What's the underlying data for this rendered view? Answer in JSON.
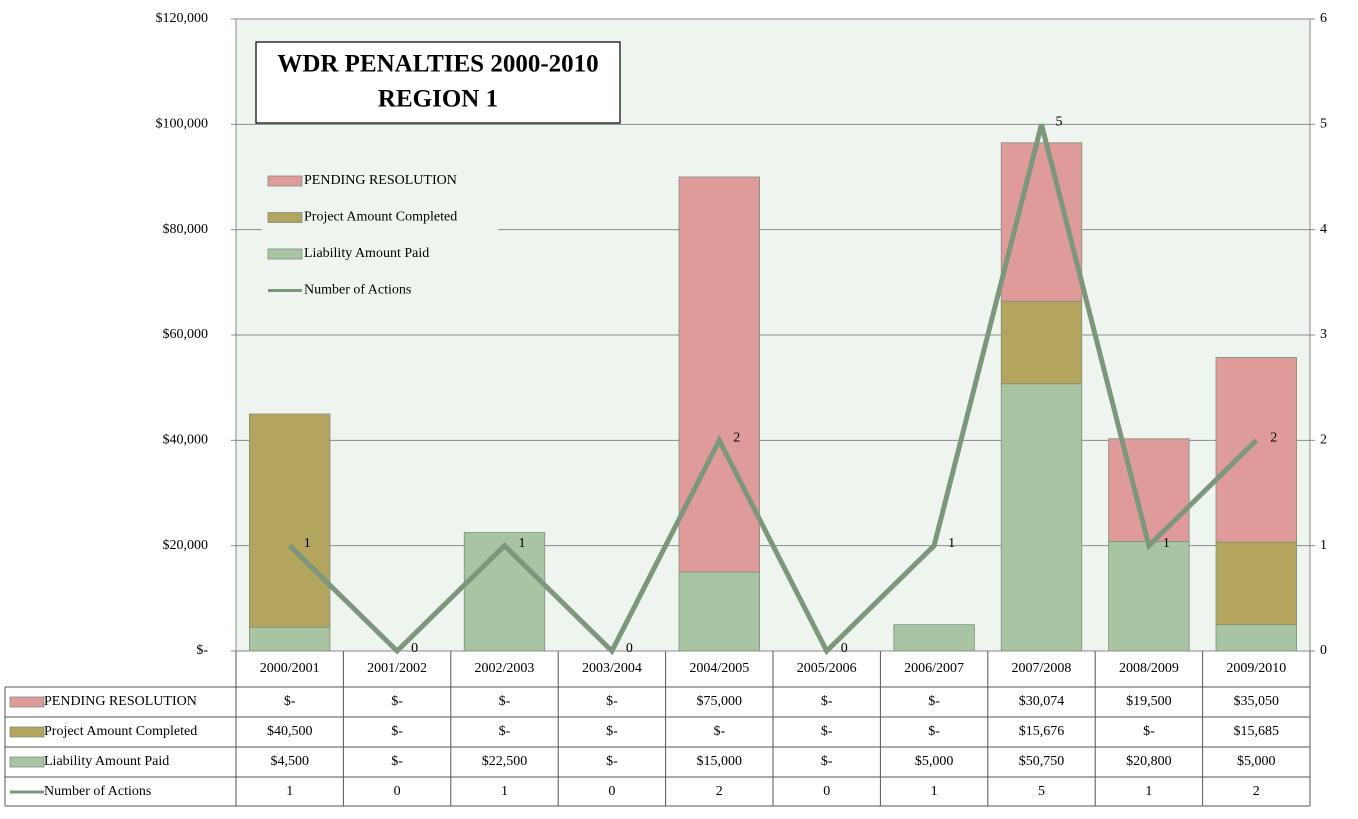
{
  "chart_data": {
    "type": "bar",
    "stacked": true,
    "title": "WDR PENALTIES 2000-2010",
    "subtitle": "REGION 1",
    "categories": [
      "2000/2001",
      "2001/2002",
      "2002/2003",
      "2003/2004",
      "2004/2005",
      "2005/2006",
      "2006/2007",
      "2007/2008",
      "2008/2009",
      "2009/2010"
    ],
    "series": [
      {
        "name": "PENDING RESOLUTION",
        "type": "bar",
        "color": "#df9a9a",
        "values": [
          0,
          0,
          0,
          0,
          75000,
          0,
          0,
          30074,
          19500,
          35050
        ],
        "value_labels": [
          "$-",
          "$-",
          "$-",
          "$-",
          "$75,000",
          "$-",
          "$-",
          "$30,074",
          "$19,500",
          "$35,050"
        ]
      },
      {
        "name": "Project Amount Completed",
        "type": "bar",
        "color": "#b3a55d",
        "values": [
          40500,
          0,
          0,
          0,
          0,
          0,
          0,
          15676,
          0,
          15685
        ],
        "value_labels": [
          "$40,500",
          "$-",
          "$-",
          "$-",
          "$-",
          "$-",
          "$-",
          "$15,676",
          "$-",
          "$15,685"
        ]
      },
      {
        "name": "Liability Amount Paid",
        "type": "bar",
        "color": "#a8c4a2",
        "values": [
          4500,
          0,
          22500,
          0,
          15000,
          0,
          5000,
          50750,
          20800,
          5000
        ],
        "value_labels": [
          "$4,500",
          "$-",
          "$22,500",
          "$-",
          "$15,000",
          "$-",
          "$5,000",
          "$50,750",
          "$20,800",
          "$5,000"
        ]
      },
      {
        "name": "Number of Actions",
        "type": "line",
        "axis": "y2",
        "color": "#7d977d",
        "values": [
          1,
          0,
          1,
          0,
          2,
          0,
          1,
          5,
          1,
          2
        ]
      }
    ],
    "ylim": [
      0,
      120000
    ],
    "yticks": [
      {
        "value": 0,
        "label": "$-"
      },
      {
        "value": 20000,
        "label": "$20,000"
      },
      {
        "value": 40000,
        "label": "$40,000"
      },
      {
        "value": 60000,
        "label": "$60,000"
      },
      {
        "value": 80000,
        "label": "$80,000"
      },
      {
        "value": 100000,
        "label": "$100,000"
      },
      {
        "value": 120000,
        "label": "$120,000"
      }
    ],
    "y2lim": [
      0,
      6
    ],
    "y2ticks": [
      0,
      1,
      2,
      3,
      4,
      5,
      6
    ],
    "grid": true,
    "legend": "upper left",
    "data_table": true
  }
}
